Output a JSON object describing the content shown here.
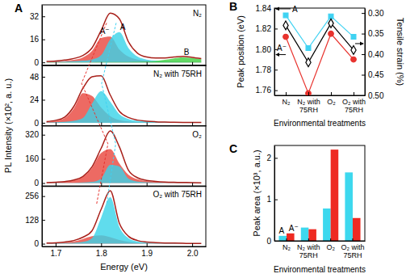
{
  "chart_data": [
    {
      "type": "area",
      "title": "A",
      "annotations": [
        "N₂"
      ],
      "ylabel": "PL Intensity (×10², a. u.)",
      "x": [
        1.68,
        1.7,
        1.72,
        1.74,
        1.76,
        1.78,
        1.8,
        1.82,
        1.84,
        1.86,
        1.88,
        1.9,
        1.92,
        1.94,
        1.96,
        1.98,
        2,
        2.02
      ],
      "xlim": [
        1.67,
        2.03
      ],
      "xticks": [
        1.7,
        1.8,
        1.9,
        {
          "value": 2,
          "label": "2.0"
        }
      ],
      "ylim": [
        -2,
        40
      ],
      "yticks": [
        0,
        16,
        32
      ],
      "tick_labels": "y",
      "series": [
        {
          "name": "A⁻",
          "color": "#e8453c",
          "values": [
            0.3,
            0.5,
            1,
            1.8,
            3.5,
            8,
            17,
            18,
            9,
            4,
            2,
            1.2,
            0.8,
            0.5,
            0.4,
            0.3,
            0.2,
            0.2
          ]
        },
        {
          "name": "A",
          "color": "#38d3e8",
          "values": [
            0.2,
            0.3,
            0.5,
            0.8,
            1.2,
            2,
            5,
            16,
            21,
            10,
            4,
            2,
            1.2,
            0.8,
            0.5,
            0.4,
            0.3,
            0.2
          ]
        },
        {
          "name": "B",
          "color": "#3fcf3f",
          "values": [
            0.1,
            0.1,
            0.1,
            0.1,
            0.1,
            0.1,
            0.2,
            0.2,
            0.3,
            0.3,
            0.4,
            0.5,
            1,
            1.8,
            2.8,
            3.5,
            3,
            2.2
          ]
        },
        {
          "type": "line",
          "color": "#a8201a",
          "values": [
            0.6,
            0.9,
            1.6,
            2.7,
            4.8,
            10.1,
            22.2,
            34.2,
            30.3,
            14.3,
            6.4,
            3.7,
            3,
            3.1,
            3.7,
            4.2,
            3.5,
            2.6
          ]
        }
      ]
    },
    {
      "type": "area",
      "annotations": [
        "N₂ with 75RH"
      ],
      "x": [
        1.68,
        1.7,
        1.72,
        1.74,
        1.76,
        1.78,
        1.8,
        1.82,
        1.84,
        1.86,
        1.88,
        1.9,
        1.92,
        1.94,
        1.96,
        1.98,
        2,
        2.02
      ],
      "xlim": [
        1.67,
        2.03
      ],
      "xticks": [
        1.7,
        1.8,
        1.9,
        {
          "value": 2,
          "label": "2.0"
        }
      ],
      "ylim": [
        -3,
        60
      ],
      "yticks": [
        0,
        24,
        48
      ],
      "tick_labels": "y",
      "series": [
        {
          "color": "#e8453c",
          "values": [
            1,
            2,
            5,
            15,
            31,
            28,
            16,
            7,
            3,
            1.5,
            0.8,
            0.5,
            0.3,
            0.2,
            0.2,
            0.1,
            0.1,
            0.1
          ]
        },
        {
          "color": "#38d3e8",
          "values": [
            0.3,
            0.6,
            1,
            2,
            5,
            20,
            33,
            22,
            9,
            4,
            2,
            1.2,
            0.8,
            0.5,
            0.4,
            0.3,
            0.2,
            0.2
          ]
        },
        {
          "type": "line",
          "color": "#a8201a",
          "values": [
            1.3,
            2.6,
            6,
            17,
            36,
            48,
            49,
            29,
            12,
            5.5,
            2.8,
            1.7,
            1.1,
            0.7,
            0.6,
            0.4,
            0.3,
            0.3
          ]
        }
      ]
    },
    {
      "type": "area",
      "annotations": [
        "O₂"
      ],
      "x": [
        1.68,
        1.7,
        1.72,
        1.74,
        1.76,
        1.78,
        1.8,
        1.82,
        1.84,
        1.86,
        1.88,
        1.9,
        1.92,
        1.94,
        1.96,
        1.98,
        2,
        2.02
      ],
      "xlim": [
        1.67,
        2.03
      ],
      "xticks": [
        1.7,
        1.8,
        1.9,
        {
          "value": 2,
          "label": "2.0"
        }
      ],
      "ylim": [
        -20,
        380
      ],
      "yticks": [
        0,
        160,
        320
      ],
      "tick_labels": "y",
      "series": [
        {
          "color": "#e8453c",
          "values": [
            3,
            5,
            9,
            18,
            40,
            100,
            200,
            225,
            130,
            55,
            25,
            13,
            8,
            5,
            4,
            3,
            2,
            2
          ]
        },
        {
          "color": "#38d3e8",
          "values": [
            0,
            1,
            1,
            2,
            4,
            8,
            30,
            120,
            110,
            30,
            10,
            5,
            3,
            2,
            1,
            1,
            1,
            0
          ]
        },
        {
          "type": "line",
          "color": "#a8201a",
          "values": [
            3,
            6,
            10,
            20,
            44,
            108,
            230,
            345,
            240,
            85,
            35,
            18,
            11,
            7,
            5,
            4,
            3,
            2
          ]
        }
      ]
    },
    {
      "type": "area",
      "annotations": [
        "O₂ with 75RH"
      ],
      "xlabel": "Energy (eV)",
      "x": [
        1.68,
        1.7,
        1.72,
        1.74,
        1.76,
        1.78,
        1.8,
        1.82,
        1.84,
        1.86,
        1.88,
        1.9,
        1.92,
        1.94,
        1.96,
        1.98,
        2,
        2.02
      ],
      "xlim": [
        1.67,
        2.03
      ],
      "xticks": [
        1.7,
        1.8,
        1.9,
        {
          "value": 2,
          "label": "2.0"
        }
      ],
      "ylim": [
        -15,
        310
      ],
      "yticks": [
        0,
        128,
        256
      ],
      "series": [
        {
          "color": "#e8453c",
          "values": [
            2,
            3,
            6,
            12,
            25,
            40,
            45,
            35,
            20,
            10,
            5,
            3,
            2,
            1,
            1,
            1,
            0,
            0
          ]
        },
        {
          "color": "#38d3e8",
          "values": [
            1,
            2,
            3,
            5,
            10,
            30,
            140,
            250,
            90,
            30,
            12,
            6,
            4,
            3,
            2,
            1,
            1,
            1
          ]
        },
        {
          "type": "line",
          "color": "#a8201a",
          "values": [
            3,
            5,
            9,
            17,
            35,
            70,
            185,
            285,
            110,
            40,
            17,
            9,
            6,
            4,
            3,
            2,
            1,
            1
          ]
        }
      ]
    },
    {
      "type": "line",
      "title": "B",
      "categories": [
        "N₂",
        "N₂ with 75RH",
        "O₂",
        "O₂ with 75RH"
      ],
      "xlabel": "Environmental treatments",
      "ylabel": "Peak position (eV)",
      "y2label": "Tensile strain (%)",
      "ylim": [
        1.755,
        1.84
      ],
      "yticks": [
        1.76,
        1.78,
        {
          "value": 1.8,
          "label": "1.80"
        },
        1.82,
        1.84
      ],
      "y2lim": [
        0.5,
        0.288
      ],
      "y2ticks": [
        {
          "value": 0.3,
          "label": "0.30"
        },
        0.35,
        {
          "value": 0.4,
          "label": "0.40"
        },
        0.45,
        {
          "value": 0.5,
          "label": "0.50"
        }
      ],
      "series": [
        {
          "name": "A",
          "color": "#3fd2f2",
          "marker": "square",
          "values": [
            1.833,
            1.801,
            1.832,
            1.812
          ]
        },
        {
          "name": "A⁻",
          "color": "#e8332e",
          "marker": "circle",
          "values": [
            1.812,
            1.757,
            1.815,
            1.79
          ]
        },
        {
          "color": "#000000",
          "marker": "diamond",
          "axis": "y2",
          "values": [
            0.33,
            0.42,
            0.325,
            0.39
          ]
        }
      ]
    },
    {
      "type": "bar",
      "title": "C",
      "categories": [
        "N₂",
        "N₂ with 75RH",
        "O₂",
        "O₂ with 75RH"
      ],
      "xlabel": "Environmental treatments",
      "ylabel": "Peak area (×10³, a.u.)",
      "ylim": [
        0,
        2.3
      ],
      "yticks": [
        0,
        1,
        2
      ],
      "series": [
        {
          "name": "A",
          "color": "#3dd8ee",
          "values": [
            0.12,
            0.32,
            0.78,
            1.65
          ]
        },
        {
          "name": "A⁻",
          "color": "#ee2a22",
          "values": [
            0.18,
            0.28,
            2.2,
            0.55
          ]
        }
      ]
    }
  ]
}
